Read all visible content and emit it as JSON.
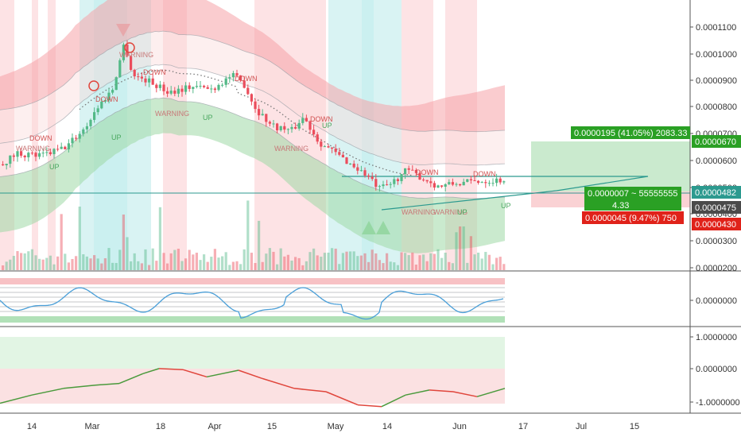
{
  "chart_data": [
    {
      "type": "candlestick",
      "panel": "price",
      "xaxis_labels": [
        "14",
        "Mar",
        "18",
        "Apr",
        "15",
        "May",
        "14",
        "Jun",
        "17",
        "Jul",
        "15"
      ],
      "yaxis_ticks": [
        "0.0001100",
        "0.0001000",
        "0.0000900",
        "0.0000800",
        "0.0000700",
        "0.0000600",
        "0.0000500",
        "0.0000400",
        "0.0000300",
        "0.0000200"
      ],
      "ylim": [
        1.8e-05,
        0.000115
      ],
      "annotations": {
        "warning": [
          "WARNING",
          "WARNING",
          "WARNING",
          "WARNING",
          "WARNING",
          "WARNING"
        ],
        "down": [
          "DOWN",
          "DOWN",
          "DOWN",
          "DOWN",
          "DOWN",
          "DOWN",
          "DOWN"
        ],
        "up": [
          "UP",
          "UP",
          "UP",
          "UP",
          "UP",
          "UP"
        ]
      },
      "position_tool": {
        "target_label": "0.0000195 (41.05%) 2083.33",
        "center_label": "0.0000007 ~ 55555555",
        "ratio_label": "4.33",
        "stop_label": "0.0000045 (9.47%) 750",
        "target_price": "0.0000670",
        "entry_price": "0.0000482",
        "stop_price": "0.0000430",
        "last_price": "0.0000475"
      },
      "colors": {
        "up": "#53b987",
        "down": "#eb4d5c",
        "profit_zone": "#9ed9a6",
        "loss_zone": "#f6b4b8",
        "price_line": "#2c9a8f"
      }
    },
    {
      "type": "line",
      "panel": "oscillator",
      "yaxis_ticks": [
        "0.0000000"
      ],
      "colors": {
        "line": "#4a9fd8",
        "upper_band": "#f5b1b5",
        "lower_band": "#9ed9a6"
      }
    },
    {
      "type": "line",
      "panel": "trend",
      "yaxis_ticks": [
        "1.0000000",
        "0.0000000",
        "-1.0000000"
      ],
      "ylim": [
        -1.3,
        1.3
      ],
      "colors": {
        "up": "#4a9a3c",
        "down": "#e0463c"
      }
    }
  ]
}
